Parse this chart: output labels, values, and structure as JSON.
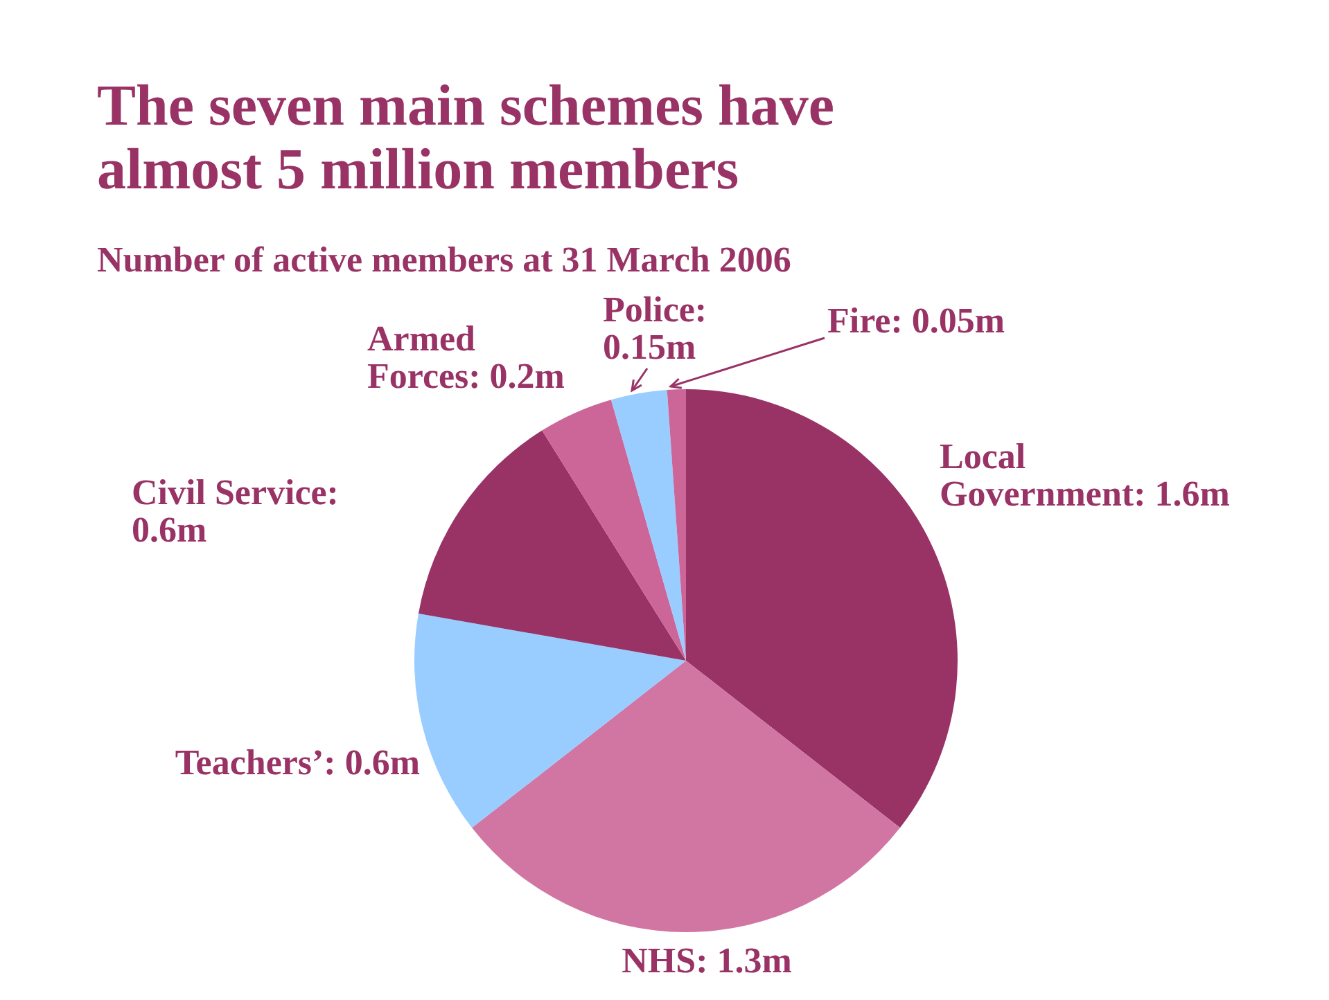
{
  "chart_data": {
    "type": "pie",
    "title": "The seven main schemes have almost 5 million members",
    "subtitle": "Number of active members at 31 March 2006",
    "categories": [
      "Local Government: 1.6m",
      "NHS: 1.3m",
      "Teachers’: 0.6m",
      "Civil Service: 0.6m",
      "Armed Forces: 0.2m",
      "Police: 0.15m",
      "Fire: 0.05m"
    ],
    "values": [
      1.6,
      1.3,
      0.6,
      0.6,
      0.2,
      0.15,
      0.05
    ],
    "colors": [
      "#993366",
      "#d175a3",
      "#99ccff",
      "#993366",
      "#cc6699",
      "#99ccff",
      "#cc6699"
    ]
  }
}
